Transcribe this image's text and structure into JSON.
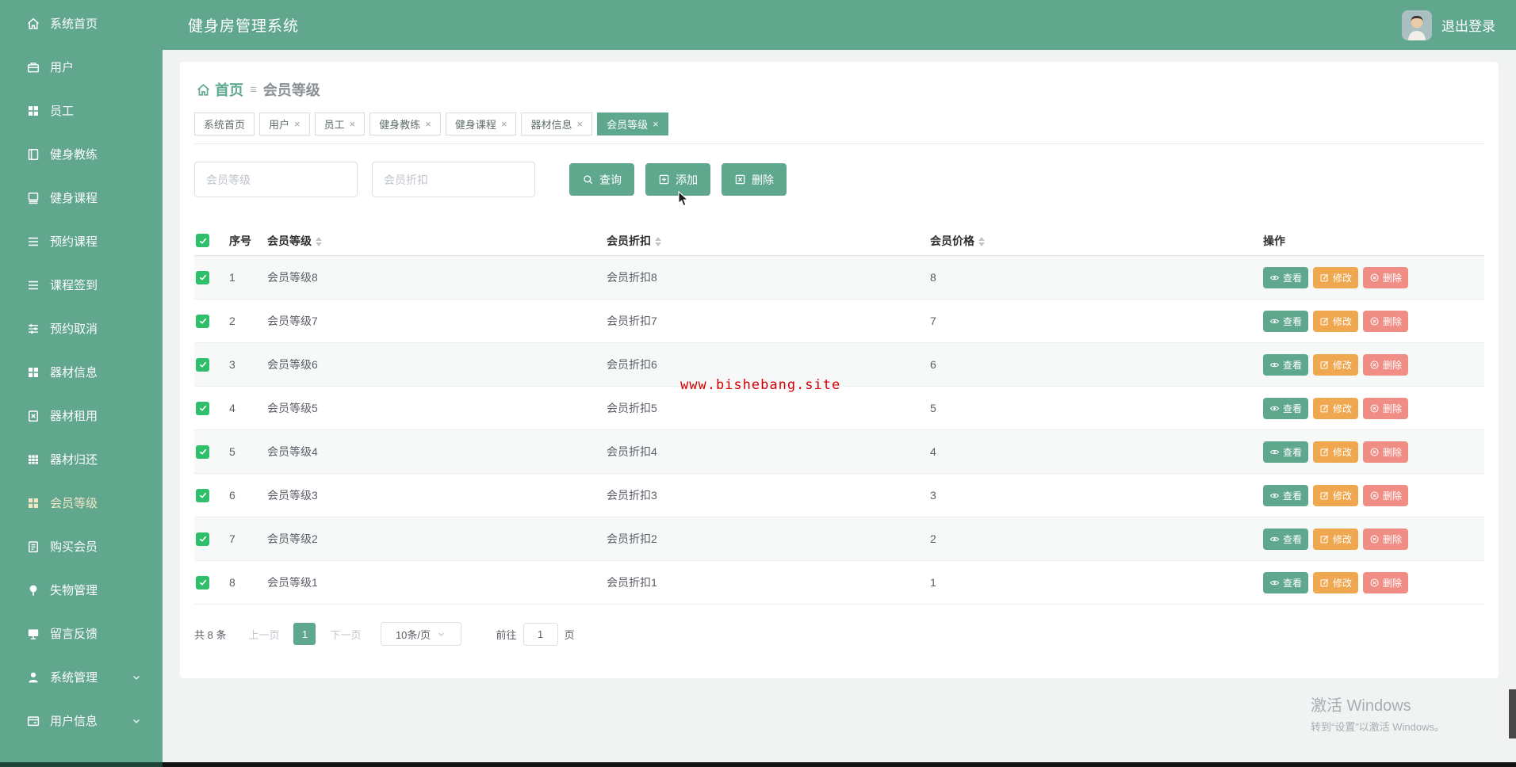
{
  "app": {
    "title": "健身房管理系统",
    "logout": "退出登录"
  },
  "sidebar": {
    "items": [
      {
        "label": "系统首页",
        "icon": "home"
      },
      {
        "label": "用户",
        "icon": "briefcase"
      },
      {
        "label": "员工",
        "icon": "grid"
      },
      {
        "label": "健身教练",
        "icon": "book"
      },
      {
        "label": "健身课程",
        "icon": "notebook"
      },
      {
        "label": "预约课程",
        "icon": "list"
      },
      {
        "label": "课程签到",
        "icon": "list"
      },
      {
        "label": "预约取消",
        "icon": "sliders"
      },
      {
        "label": "器材信息",
        "icon": "grid"
      },
      {
        "label": "器材租用",
        "icon": "clipboardx"
      },
      {
        "label": "器材归还",
        "icon": "tablegrid"
      },
      {
        "label": "会员等级",
        "icon": "grid",
        "active": true
      },
      {
        "label": "购买会员",
        "icon": "clipboard"
      },
      {
        "label": "失物管理",
        "icon": "pin"
      },
      {
        "label": "留言反馈",
        "icon": "monitor"
      },
      {
        "label": "系统管理",
        "icon": "user",
        "chevron": true
      },
      {
        "label": "用户信息",
        "icon": "idcard",
        "chevron": true
      }
    ]
  },
  "breadcrumb": {
    "home": "首页",
    "separator": "≡",
    "current": "会员等级"
  },
  "tabs": [
    {
      "label": "系统首页",
      "closable": false
    },
    {
      "label": "用户",
      "closable": true
    },
    {
      "label": "员工",
      "closable": true
    },
    {
      "label": "健身教练",
      "closable": true
    },
    {
      "label": "健身课程",
      "closable": true
    },
    {
      "label": "器材信息",
      "closable": true
    },
    {
      "label": "会员等级",
      "closable": true,
      "active": true
    }
  ],
  "toolbar": {
    "level_placeholder": "会员等级",
    "discount_placeholder": "会员折扣",
    "query": "查询",
    "add": "添加",
    "delete": "删除"
  },
  "table": {
    "columns": [
      {
        "label": "序号",
        "sortable": false
      },
      {
        "label": "会员等级",
        "sortable": true
      },
      {
        "label": "会员折扣",
        "sortable": true
      },
      {
        "label": "会员价格",
        "sortable": true
      },
      {
        "label": "操作",
        "sortable": false
      }
    ],
    "actions": {
      "view": "查看",
      "edit": "修改",
      "remove": "删除"
    },
    "rows": [
      {
        "index": "1",
        "level": "会员等级8",
        "discount": "会员折扣8",
        "price": "8"
      },
      {
        "index": "2",
        "level": "会员等级7",
        "discount": "会员折扣7",
        "price": "7"
      },
      {
        "index": "3",
        "level": "会员等级6",
        "discount": "会员折扣6",
        "price": "6"
      },
      {
        "index": "4",
        "level": "会员等级5",
        "discount": "会员折扣5",
        "price": "5"
      },
      {
        "index": "5",
        "level": "会员等级4",
        "discount": "会员折扣4",
        "price": "4"
      },
      {
        "index": "6",
        "level": "会员等级3",
        "discount": "会员折扣3",
        "price": "3"
      },
      {
        "index": "7",
        "level": "会员等级2",
        "discount": "会员折扣2",
        "price": "2"
      },
      {
        "index": "8",
        "level": "会员等级1",
        "discount": "会员折扣1",
        "price": "1"
      }
    ]
  },
  "pagination": {
    "total_text": "共 8 条",
    "prev": "上一页",
    "page": "1",
    "next": "下一页",
    "page_size": "10条/页",
    "goto_prefix": "前往",
    "goto_value": "1",
    "goto_suffix": "页"
  },
  "overlays": {
    "site_watermark": "www.bishebang.site",
    "windows_title": "激活 Windows",
    "windows_subtitle": "转到“设置”以激活 Windows。"
  },
  "colors": {
    "accent_green": "#5fa88e",
    "checkbox_green": "#2fbf6b",
    "edit_orange": "#f0a850",
    "delete_red": "#f08d85",
    "watermark_red": "#d40000"
  }
}
